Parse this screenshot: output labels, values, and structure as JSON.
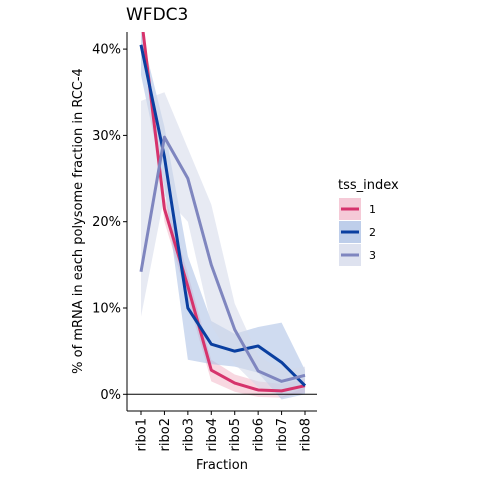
{
  "chart_data": {
    "type": "line",
    "title": "WFDC3",
    "xlabel": "Fraction",
    "ylabel": "% of mRNA in each polysome fraction in RCC-4",
    "categories": [
      "ribo1",
      "ribo2",
      "ribo3",
      "ribo4",
      "ribo5",
      "ribo6",
      "ribo7",
      "ribo8"
    ],
    "ylim": [
      -2,
      42
    ],
    "yticks": [
      0,
      10,
      20,
      30,
      40
    ],
    "ytick_labels": [
      "0%",
      "10%",
      "20%",
      "30%",
      "40%"
    ],
    "zero_line": true,
    "grid": false,
    "legend": {
      "title": "tss_index",
      "position": "right"
    },
    "series": [
      {
        "name": "1",
        "color": "#d6336c",
        "band_color": "#f2b8c9",
        "values": [
          44.0,
          21.5,
          12.5,
          2.8,
          1.3,
          0.5,
          0.4,
          1.0
        ],
        "lower": [
          44.0,
          20.0,
          11.0,
          1.5,
          0.3,
          -0.3,
          -0.4,
          0.2
        ],
        "upper": [
          44.0,
          23.0,
          14.0,
          4.0,
          2.3,
          1.5,
          1.2,
          1.8
        ]
      },
      {
        "name": "2",
        "color": "#0a3fa0",
        "band_color": "#a8bde3",
        "values": [
          40.5,
          27.5,
          10.0,
          5.8,
          5.0,
          5.6,
          3.7,
          1.0
        ],
        "lower": [
          37.0,
          24.0,
          4.0,
          3.5,
          3.2,
          2.5,
          -0.6,
          0.0
        ],
        "upper": [
          42.0,
          31.0,
          16.0,
          8.5,
          7.0,
          7.8,
          8.3,
          2.8
        ]
      },
      {
        "name": "3",
        "color": "#7f86bf",
        "band_color": "#d3d8ea",
        "values": [
          14.2,
          29.8,
          25.0,
          15.0,
          7.5,
          2.7,
          1.5,
          2.2
        ],
        "lower": [
          9.0,
          23.0,
          20.0,
          8.0,
          3.5,
          0.8,
          -0.3,
          0.8
        ],
        "upper": [
          34.0,
          35.0,
          28.5,
          22.0,
          10.5,
          4.5,
          2.8,
          3.2
        ]
      }
    ]
  }
}
